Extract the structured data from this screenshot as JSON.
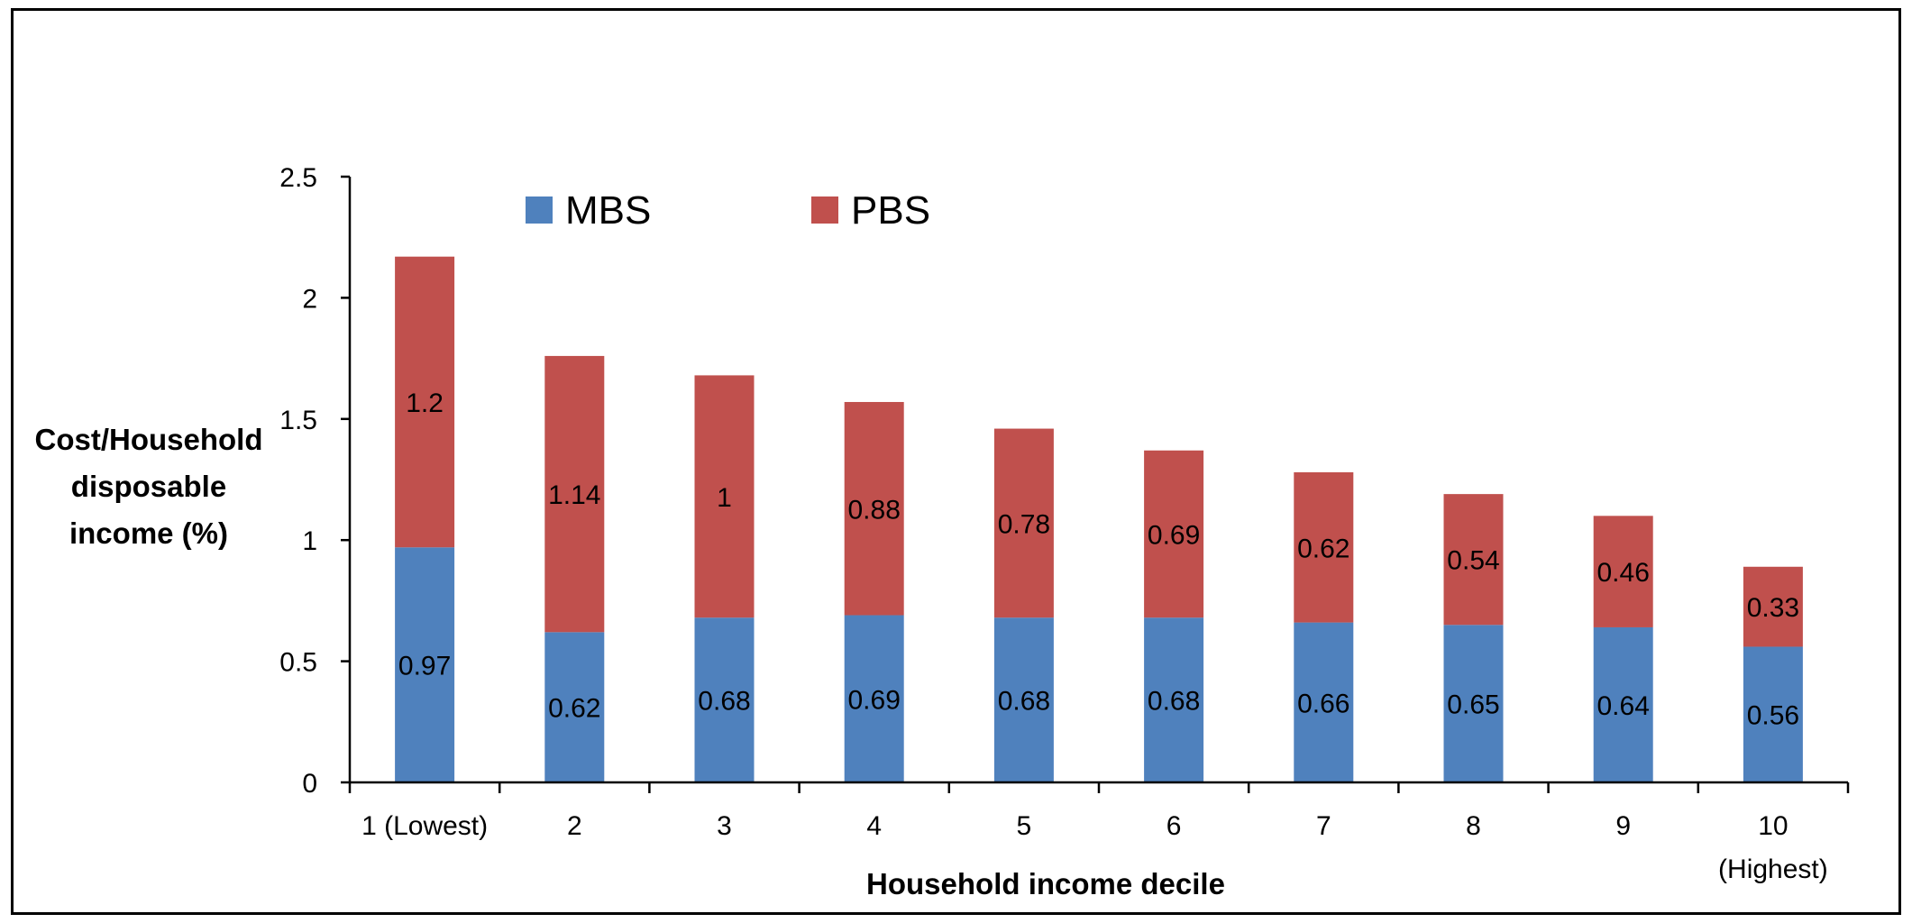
{
  "chart_data": {
    "type": "bar",
    "stacked": true,
    "categories": [
      "1 (Lowest)",
      "2",
      "3",
      "4",
      "5",
      "6",
      "7",
      "8",
      "9",
      "10 (Highest)"
    ],
    "category_lines": [
      [
        "1 (Lowest)"
      ],
      [
        "2"
      ],
      [
        "3"
      ],
      [
        "4"
      ],
      [
        "5"
      ],
      [
        "6"
      ],
      [
        "7"
      ],
      [
        "8"
      ],
      [
        "9"
      ],
      [
        "10",
        "(Highest)"
      ]
    ],
    "series": [
      {
        "name": "MBS",
        "color": "#4f81bd",
        "values": [
          0.97,
          0.62,
          0.68,
          0.69,
          0.68,
          0.68,
          0.66,
          0.65,
          0.64,
          0.56
        ],
        "labels": [
          "0.97",
          "0.62",
          "0.68",
          "0.69",
          "0.68",
          "0.68",
          "0.66",
          "0.65",
          "0.64",
          "0.56"
        ]
      },
      {
        "name": "PBS",
        "color": "#c0504d",
        "values": [
          1.2,
          1.14,
          1.0,
          0.88,
          0.78,
          0.69,
          0.62,
          0.54,
          0.46,
          0.33
        ],
        "labels": [
          "1.2",
          "1.14",
          "1",
          "0.88",
          "0.78",
          "0.69",
          "0.62",
          "0.54",
          "0.46",
          "0.33"
        ]
      }
    ],
    "title": "",
    "xlabel": "Household income decile",
    "ylabel_lines": [
      "Cost/Household",
      "disposable",
      "income (%)"
    ],
    "ylim": [
      0,
      2.5
    ],
    "yticks": [
      0,
      0.5,
      1,
      1.5,
      2,
      2.5
    ],
    "ytick_labels": [
      "0",
      "0.5",
      "1",
      "1.5",
      "2",
      "2.5"
    ],
    "grid": false,
    "legend_position": "top"
  }
}
